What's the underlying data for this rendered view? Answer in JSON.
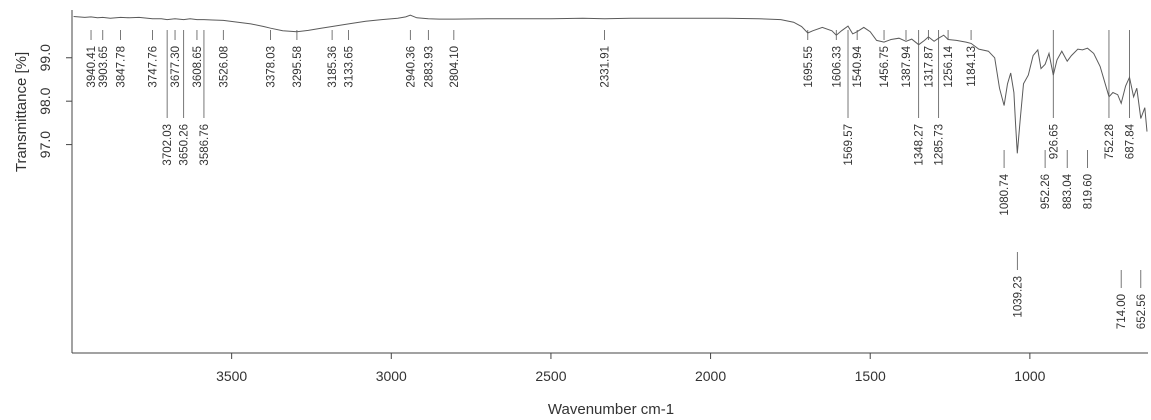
{
  "chart_data": {
    "type": "line",
    "title": "",
    "xlabel": "Wavenumber cm-1",
    "ylabel": "Transmittance [%]",
    "xlim": [
      4000,
      630
    ],
    "ylim": [
      92.2,
      100.1
    ],
    "x_ticks": [
      "3500",
      "3000",
      "2500",
      "2000",
      "1500",
      "1000"
    ],
    "x_tick_values": [
      3500,
      3000,
      2500,
      2000,
      1500,
      1000
    ],
    "y_ticks": [
      "99.0",
      "98.0",
      "97.0"
    ],
    "y_tick_values": [
      99.0,
      98.0,
      97.0
    ],
    "grid": false,
    "series": [
      {
        "x": [
          3995,
          3960,
          3940.41,
          3920,
          3903.65,
          3880,
          3847.78,
          3820,
          3790,
          3747.76,
          3720,
          3702.03,
          3677.3,
          3650.26,
          3630,
          3608.65,
          3586.76,
          3560,
          3526.08,
          3480,
          3440,
          3400,
          3378.03,
          3340,
          3295.58,
          3260,
          3220,
          3185.36,
          3133.65,
          3080,
          3030,
          2980,
          2955,
          2940.36,
          2920,
          2883.93,
          2850,
          2804.1,
          2700,
          2600,
          2500,
          2400,
          2331.91,
          2250,
          2150,
          2050,
          1950,
          1850,
          1780,
          1740,
          1715,
          1695.55,
          1680,
          1650,
          1620,
          1606.33,
          1590,
          1569.57,
          1555,
          1540.94,
          1520,
          1500,
          1480,
          1456.75,
          1435,
          1410,
          1387.94,
          1370,
          1348.27,
          1330,
          1317.87,
          1300,
          1285.73,
          1270,
          1256.14,
          1230,
          1200,
          1184.13,
          1160,
          1130,
          1110,
          1095,
          1080.74,
          1070,
          1060,
          1050,
          1045,
          1039.23,
          1030,
          1020,
          1005,
          990,
          975,
          965,
          952.26,
          940,
          926.65,
          915,
          900,
          883.04,
          870,
          850,
          835,
          819.6,
          800,
          780,
          760,
          752.28,
          740,
          725,
          714,
          700,
          687.84,
          675,
          665,
          652.56,
          640,
          633
        ],
        "y": [
          99.95,
          99.93,
          99.94,
          99.92,
          99.93,
          99.91,
          99.93,
          99.92,
          99.93,
          99.9,
          99.9,
          99.88,
          99.9,
          99.88,
          99.9,
          99.88,
          99.88,
          99.87,
          99.86,
          99.82,
          99.78,
          99.72,
          99.68,
          99.62,
          99.6,
          99.63,
          99.68,
          99.72,
          99.78,
          99.84,
          99.88,
          99.91,
          99.94,
          99.98,
          99.92,
          99.9,
          99.89,
          99.89,
          99.9,
          99.9,
          99.9,
          99.91,
          99.9,
          99.91,
          99.91,
          99.91,
          99.91,
          99.9,
          99.88,
          99.82,
          99.72,
          99.57,
          99.62,
          99.7,
          99.62,
          99.52,
          99.62,
          99.73,
          99.55,
          99.6,
          99.7,
          99.6,
          99.4,
          99.36,
          99.42,
          99.45,
          99.38,
          99.43,
          99.3,
          99.4,
          99.48,
          99.38,
          99.45,
          99.52,
          99.42,
          99.4,
          99.36,
          99.33,
          99.2,
          99.15,
          99.0,
          98.3,
          97.9,
          98.4,
          98.65,
          98.2,
          97.5,
          96.8,
          97.6,
          98.4,
          98.6,
          99.05,
          99.18,
          98.75,
          98.85,
          99.1,
          98.6,
          98.95,
          99.15,
          98.92,
          99.05,
          99.2,
          99.18,
          99.22,
          99.1,
          98.8,
          98.3,
          98.1,
          98.2,
          98.15,
          97.95,
          98.35,
          98.55,
          98.1,
          98.3,
          97.6,
          97.85,
          97.3
        ]
      }
    ],
    "peak_labels": [
      {
        "text": "3940.41",
        "x": 3940.41,
        "pos": "top"
      },
      {
        "text": "3903.65",
        "x": 3903.65,
        "pos": "top"
      },
      {
        "text": "3847.78",
        "x": 3847.78,
        "pos": "top"
      },
      {
        "text": "3747.76",
        "x": 3747.76,
        "pos": "top"
      },
      {
        "text": "3702.03",
        "x": 3702.03,
        "pos": "low"
      },
      {
        "text": "3677.30",
        "x": 3677.3,
        "pos": "top"
      },
      {
        "text": "3650.26",
        "x": 3650.26,
        "pos": "low"
      },
      {
        "text": "3608.65",
        "x": 3608.65,
        "pos": "top"
      },
      {
        "text": "3586.76",
        "x": 3586.76,
        "pos": "low"
      },
      {
        "text": "3526.08",
        "x": 3526.08,
        "pos": "top"
      },
      {
        "text": "3378.03",
        "x": 3378.03,
        "pos": "top"
      },
      {
        "text": "3295.58",
        "x": 3295.58,
        "pos": "top"
      },
      {
        "text": "3185.36",
        "x": 3185.36,
        "pos": "top"
      },
      {
        "text": "3133.65",
        "x": 3133.65,
        "pos": "top"
      },
      {
        "text": "2940.36",
        "x": 2940.36,
        "pos": "top"
      },
      {
        "text": "2883.93",
        "x": 2883.93,
        "pos": "top"
      },
      {
        "text": "2804.10",
        "x": 2804.1,
        "pos": "top"
      },
      {
        "text": "2331.91",
        "x": 2331.91,
        "pos": "top"
      },
      {
        "text": "1695.55",
        "x": 1695.55,
        "pos": "top"
      },
      {
        "text": "1606.33",
        "x": 1606.33,
        "pos": "top"
      },
      {
        "text": "1569.57",
        "x": 1569.57,
        "pos": "low"
      },
      {
        "text": "1540.94",
        "x": 1540.94,
        "pos": "top"
      },
      {
        "text": "1456.75",
        "x": 1456.75,
        "pos": "top"
      },
      {
        "text": "1387.94",
        "x": 1387.94,
        "pos": "top"
      },
      {
        "text": "1348.27",
        "x": 1348.27,
        "pos": "low"
      },
      {
        "text": "1317.87",
        "x": 1317.87,
        "pos": "top"
      },
      {
        "text": "1285.73",
        "x": 1285.73,
        "pos": "low"
      },
      {
        "text": "1256.14",
        "x": 1256.14,
        "pos": "top"
      },
      {
        "text": "1184.13",
        "x": 1184.13,
        "pos": "top"
      },
      {
        "text": "1080.74",
        "x": 1080.74,
        "pos": "mid"
      },
      {
        "text": "1039.23",
        "x": 1039.23,
        "pos": "deep"
      },
      {
        "text": "952.26",
        "x": 952.26,
        "pos": "mid"
      },
      {
        "text": "926.65",
        "x": 926.65,
        "pos": "low"
      },
      {
        "text": "883.04",
        "x": 883.04,
        "pos": "mid"
      },
      {
        "text": "819.60",
        "x": 819.6,
        "pos": "mid"
      },
      {
        "text": "752.28",
        "x": 752.28,
        "pos": "low"
      },
      {
        "text": "714.00",
        "x": 714.0,
        "pos": "deeplow"
      },
      {
        "text": "687.84",
        "x": 687.84,
        "pos": "low"
      },
      {
        "text": "652.56",
        "x": 652.56,
        "pos": "deeplow"
      }
    ]
  }
}
